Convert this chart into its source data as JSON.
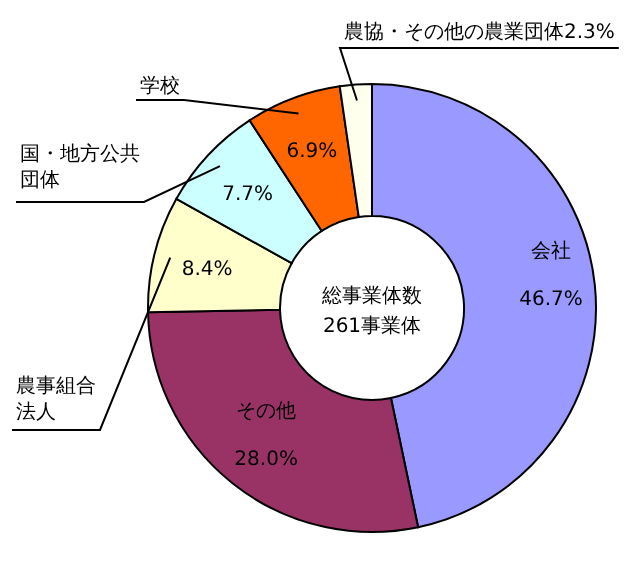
{
  "chart_data": {
    "type": "donut",
    "categories": [
      "会社",
      "その他",
      "農事組合法人",
      "国・地方公共団体",
      "学校",
      "農協・その他の農業団体"
    ],
    "values": [
      46.7,
      28.0,
      8.4,
      7.7,
      6.9,
      2.3
    ],
    "value_labels": [
      "46.7%",
      "28.0%",
      "8.4%",
      "7.7%",
      "6.9%",
      "2.3%"
    ],
    "colors": [
      "#9999ff",
      "#993366",
      "#ffffcc",
      "#ccffff",
      "#ff6600",
      "#ffffee"
    ],
    "annotations": [
      "総事業体数",
      "261事業体"
    ]
  }
}
